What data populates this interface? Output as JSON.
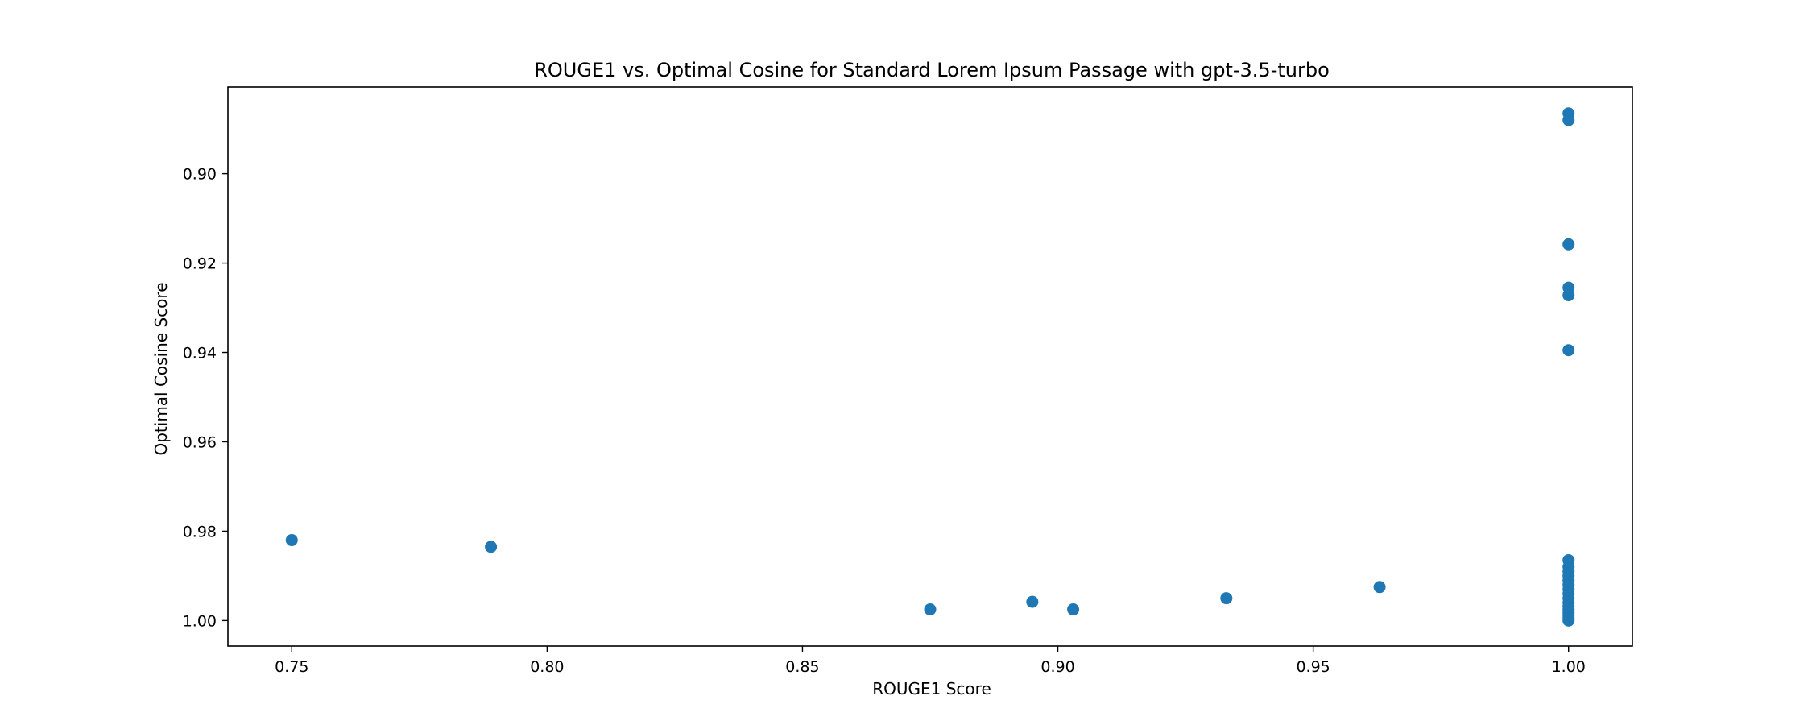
{
  "chart_data": {
    "type": "scatter",
    "title": "ROUGE1 vs. Optimal Cosine for Standard Lorem Ipsum Passage with gpt-3.5-turbo",
    "xlabel": "ROUGE1 Score",
    "ylabel": "Optimal Cosine Score",
    "xlim": [
      0.7375,
      1.0125
    ],
    "ylim": [
      1.0057,
      0.8806
    ],
    "y_inverted": true,
    "grid": false,
    "legend": "none",
    "marker_color": "#1f77b4",
    "xticks": [
      0.75,
      0.8,
      0.85,
      0.9,
      0.95,
      1.0
    ],
    "xtick_labels": [
      "0.75",
      "0.80",
      "0.85",
      "0.90",
      "0.95",
      "1.00"
    ],
    "yticks": [
      0.9,
      0.92,
      0.94,
      0.96,
      0.98,
      1.0
    ],
    "ytick_labels": [
      "0.90",
      "0.92",
      "0.94",
      "0.96",
      "0.98",
      "1.00"
    ],
    "points": [
      {
        "x": 0.75,
        "y": 0.982
      },
      {
        "x": 0.789,
        "y": 0.9835
      },
      {
        "x": 0.875,
        "y": 0.9975
      },
      {
        "x": 0.895,
        "y": 0.9958
      },
      {
        "x": 0.903,
        "y": 0.9975
      },
      {
        "x": 0.933,
        "y": 0.995
      },
      {
        "x": 0.963,
        "y": 0.9925
      },
      {
        "x": 1.0,
        "y": 0.8865
      },
      {
        "x": 1.0,
        "y": 0.888
      },
      {
        "x": 1.0,
        "y": 0.9158
      },
      {
        "x": 1.0,
        "y": 0.9255
      },
      {
        "x": 1.0,
        "y": 0.9272
      },
      {
        "x": 1.0,
        "y": 0.9395
      },
      {
        "x": 1.0,
        "y": 0.9865
      },
      {
        "x": 1.0,
        "y": 0.988
      },
      {
        "x": 1.0,
        "y": 0.989
      },
      {
        "x": 1.0,
        "y": 0.99
      },
      {
        "x": 1.0,
        "y": 0.991
      },
      {
        "x": 1.0,
        "y": 0.992
      },
      {
        "x": 1.0,
        "y": 0.993
      },
      {
        "x": 1.0,
        "y": 0.994
      },
      {
        "x": 1.0,
        "y": 0.995
      },
      {
        "x": 1.0,
        "y": 0.996
      },
      {
        "x": 1.0,
        "y": 0.9968
      },
      {
        "x": 1.0,
        "y": 0.9975
      },
      {
        "x": 1.0,
        "y": 0.9982
      },
      {
        "x": 1.0,
        "y": 0.9988
      },
      {
        "x": 1.0,
        "y": 0.9994
      },
      {
        "x": 1.0,
        "y": 1.0
      }
    ]
  }
}
